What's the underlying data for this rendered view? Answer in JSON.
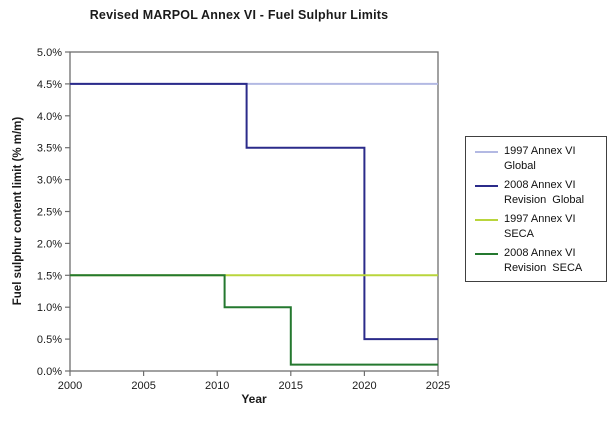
{
  "chart_data": {
    "type": "line",
    "title": "Revised MARPOL Annex VI - Fuel Sulphur Limits",
    "xlabel": "Year",
    "ylabel": "Fuel sulphur content limit (% m/m)",
    "xlim": [
      2000,
      2025
    ],
    "ylim": [
      0,
      5
    ],
    "xticks": [
      2000,
      2005,
      2010,
      2015,
      2020,
      2025
    ],
    "ytick_values": [
      0,
      0.5,
      1,
      1.5,
      2,
      2.5,
      3,
      3.5,
      4,
      4.5,
      5
    ],
    "ytick_labels": [
      "0.0%",
      "0.5%",
      "1.0%",
      "1.5%",
      "2.0%",
      "2.5%",
      "3.0%",
      "3.5%",
      "4.0%",
      "4.5%",
      "5.0%"
    ],
    "grid": false,
    "legend_position": "right",
    "axis_color": "#6e6e6e",
    "series": [
      {
        "name": "1997 Annex VI Global",
        "label_lines": [
          "1997 Annex VI",
          "Global"
        ],
        "color": "#b3b9e3",
        "points": [
          [
            2000,
            4.5
          ],
          [
            2025,
            4.5
          ]
        ]
      },
      {
        "name": "2008 Annex VI Revision Global",
        "label_lines": [
          "2008 Annex VI",
          "Revision  Global"
        ],
        "color": "#2b2b8a",
        "points": [
          [
            2000,
            4.5
          ],
          [
            2012,
            4.5
          ],
          [
            2012,
            3.5
          ],
          [
            2020,
            3.5
          ],
          [
            2020,
            0.5
          ],
          [
            2025,
            0.5
          ]
        ]
      },
      {
        "name": "1997 Annex VI SECA",
        "label_lines": [
          "1997 Annex VI",
          "SECA"
        ],
        "color": "#b9d53c",
        "points": [
          [
            2000,
            1.5
          ],
          [
            2025,
            1.5
          ]
        ]
      },
      {
        "name": "2008 Annex VI Revision SECA",
        "label_lines": [
          "2008 Annex VI",
          "Revision  SECA"
        ],
        "color": "#24782f",
        "points": [
          [
            2000,
            1.5
          ],
          [
            2010.5,
            1.5
          ],
          [
            2010.5,
            1.0
          ],
          [
            2015,
            1.0
          ],
          [
            2015,
            0.1
          ],
          [
            2025,
            0.1
          ]
        ]
      }
    ]
  }
}
